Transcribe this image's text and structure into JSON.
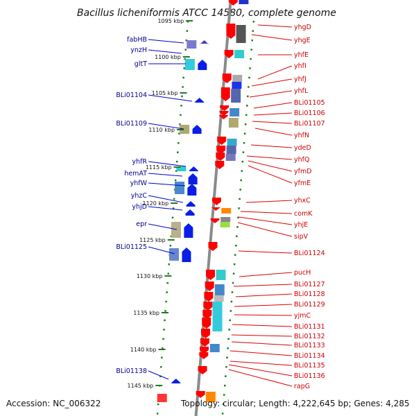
{
  "title": "Bacillus licheniformis ATCC 14580, complete genome",
  "footer": {
    "accession": "Accession: NC_006322",
    "topology": "Topology: circular; Length: 4,222,645 bp; Genes: 4,285"
  },
  "colors": {
    "backbone": "#8a8a8a",
    "tick": "#1f7a1f",
    "forward_label": "#00008b",
    "reverse_label": "#cc0000",
    "forward_feature": "#0a1ee6",
    "reverse_feature": "#ff0000",
    "leader": "#0000cc",
    "leader_rev": "#dd0000"
  },
  "scale_ticks": [
    {
      "label": "1095 kbp"
    },
    {
      "label": "1100 kbp"
    },
    {
      "label": "1105 kbp"
    },
    {
      "label": "1110 kbp"
    },
    {
      "label": "1115 kbp"
    },
    {
      "label": "1120 kbp"
    },
    {
      "label": "1125 kbp"
    },
    {
      "label": "1130 kbp"
    },
    {
      "label": "1135 kbp"
    },
    {
      "label": "1140 kbp"
    },
    {
      "label": "1145 kbp"
    }
  ],
  "forward_genes": [
    "fabHB",
    "ynzH",
    "gltT",
    "BLi01104",
    "BLi01109",
    "yhfR",
    "hemAT",
    "yhfW",
    "yhzC",
    "yhjD",
    "epr",
    "BLi01125",
    "BLi01138"
  ],
  "reverse_genes": [
    "yhgD",
    "yhgE",
    "yhfE",
    "yhfI",
    "yhfJ",
    "yhfL",
    "BLi01105",
    "BLi01106",
    "BLi01107",
    "yhfN",
    "ydeD",
    "yhfQ",
    "yfmD",
    "yfmE",
    "yhxC",
    "comK",
    "yhjE",
    "sipV",
    "BLi01124",
    "pucH",
    "BLi01127",
    "BLi01128",
    "BLi01129",
    "yjmC",
    "BLi01131",
    "BLi01132",
    "BLi01133",
    "BLi01134",
    "BLi01135",
    "BLi01136",
    "rapG"
  ]
}
